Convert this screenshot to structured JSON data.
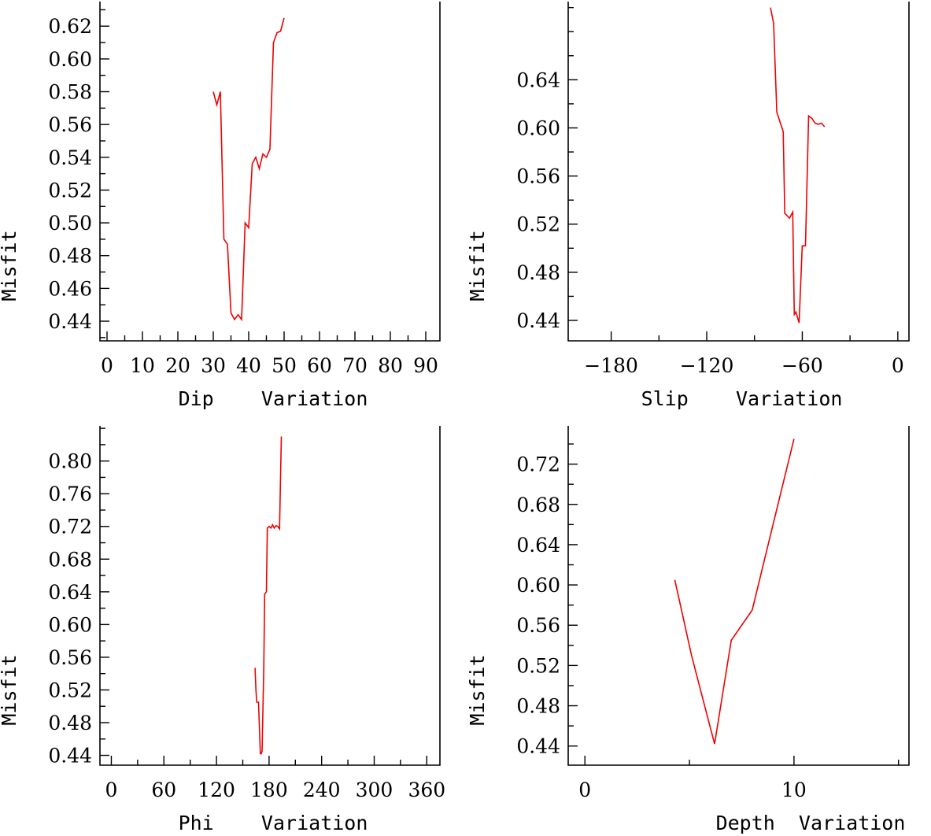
{
  "colors": {
    "axis": "#000000",
    "series": "#ee0000",
    "background": "#ffffff"
  },
  "chart_data": [
    {
      "type": "line",
      "xlabel": "Dip    Variation",
      "ylabel": "Misfit",
      "xlim": [
        -2,
        94
      ],
      "ylim": [
        0.428,
        0.635
      ],
      "xticks": [
        0,
        10,
        20,
        30,
        40,
        50,
        60,
        70,
        80,
        90
      ],
      "xtick_labels": [
        "0",
        "10",
        "20",
        "30",
        "40",
        "50",
        "60",
        "70",
        "80",
        "90"
      ],
      "yticks": [
        0.44,
        0.46,
        0.48,
        0.5,
        0.52,
        0.54,
        0.56,
        0.58,
        0.6,
        0.62
      ],
      "ytick_labels": [
        "0.44",
        "0.46",
        "0.48",
        "0.50",
        "0.52",
        "0.54",
        "0.56",
        "0.58",
        "0.60",
        "0.62"
      ],
      "series": [
        {
          "name": "misfit",
          "x": [
            30,
            31,
            32,
            33,
            34,
            35,
            36,
            37,
            38,
            39,
            40,
            41,
            42,
            43,
            44,
            45,
            46,
            47,
            48,
            49,
            50
          ],
          "y": [
            0.58,
            0.572,
            0.58,
            0.49,
            0.487,
            0.445,
            0.441,
            0.444,
            0.441,
            0.5,
            0.497,
            0.536,
            0.54,
            0.533,
            0.542,
            0.54,
            0.545,
            0.61,
            0.616,
            0.617,
            0.625
          ]
        }
      ]
    },
    {
      "type": "line",
      "xlabel": "Slip    Variation",
      "ylabel": "Misfit",
      "xlim": [
        -207,
        7
      ],
      "ylim": [
        0.423,
        0.705
      ],
      "xticks": [
        -180,
        -120,
        -60,
        0
      ],
      "xtick_labels": [
        "−180",
        "−120",
        "−60",
        "0"
      ],
      "yticks": [
        0.44,
        0.48,
        0.52,
        0.56,
        0.6,
        0.64
      ],
      "ytick_labels": [
        "0.44",
        "0.48",
        "0.52",
        "0.56",
        "0.60",
        "0.64"
      ],
      "series": [
        {
          "name": "misfit",
          "x": [
            -80,
            -78,
            -76,
            -72,
            -71,
            -68,
            -66,
            -65,
            -64,
            -62,
            -60,
            -58,
            -56,
            -54,
            -52,
            -50,
            -48,
            -46
          ],
          "y": [
            0.7,
            0.687,
            0.613,
            0.597,
            0.529,
            0.525,
            0.53,
            0.445,
            0.447,
            0.438,
            0.502,
            0.502,
            0.61,
            0.608,
            0.604,
            0.603,
            0.604,
            0.601
          ]
        }
      ]
    },
    {
      "type": "line",
      "xlabel": "Phi    Variation",
      "ylabel": "Misfit",
      "xlim": [
        -13,
        375
      ],
      "ylim": [
        0.428,
        0.843
      ],
      "xticks": [
        0,
        60,
        120,
        180,
        240,
        300,
        360
      ],
      "xtick_labels": [
        "0",
        "60",
        "120",
        "180",
        "240",
        "300",
        "360"
      ],
      "yticks": [
        0.44,
        0.48,
        0.52,
        0.56,
        0.6,
        0.64,
        0.68,
        0.72,
        0.76,
        0.8
      ],
      "ytick_labels": [
        "0.44",
        "0.48",
        "0.52",
        "0.56",
        "0.60",
        "0.64",
        "0.68",
        "0.72",
        "0.76",
        "0.80"
      ],
      "series": [
        {
          "name": "misfit",
          "x": [
            164,
            165,
            166,
            168,
            170,
            171,
            172,
            174,
            175,
            177,
            178,
            180,
            182,
            184,
            186,
            188,
            190,
            192,
            194
          ],
          "y": [
            0.547,
            0.52,
            0.505,
            0.505,
            0.442,
            0.442,
            0.445,
            0.548,
            0.637,
            0.64,
            0.718,
            0.72,
            0.718,
            0.722,
            0.718,
            0.721,
            0.72,
            0.717,
            0.83
          ]
        }
      ]
    },
    {
      "type": "line",
      "xlabel": "Depth  Variation",
      "ylabel": "Misfit",
      "xlim": [
        -0.8,
        15.5
      ],
      "ylim": [
        0.421,
        0.758
      ],
      "xticks": [
        0,
        10
      ],
      "xtick_labels": [
        "0",
        "10"
      ],
      "yticks": [
        0.44,
        0.48,
        0.52,
        0.56,
        0.6,
        0.64,
        0.68,
        0.72
      ],
      "ytick_labels": [
        "0.44",
        "0.48",
        "0.52",
        "0.56",
        "0.60",
        "0.64",
        "0.68",
        "0.72"
      ],
      "series": [
        {
          "name": "misfit",
          "x": [
            4.3,
            5.1,
            6.2,
            7.0,
            8.0,
            9.0,
            10.0
          ],
          "y": [
            0.605,
            0.53,
            0.442,
            0.545,
            0.575,
            0.66,
            0.745
          ]
        }
      ]
    }
  ]
}
